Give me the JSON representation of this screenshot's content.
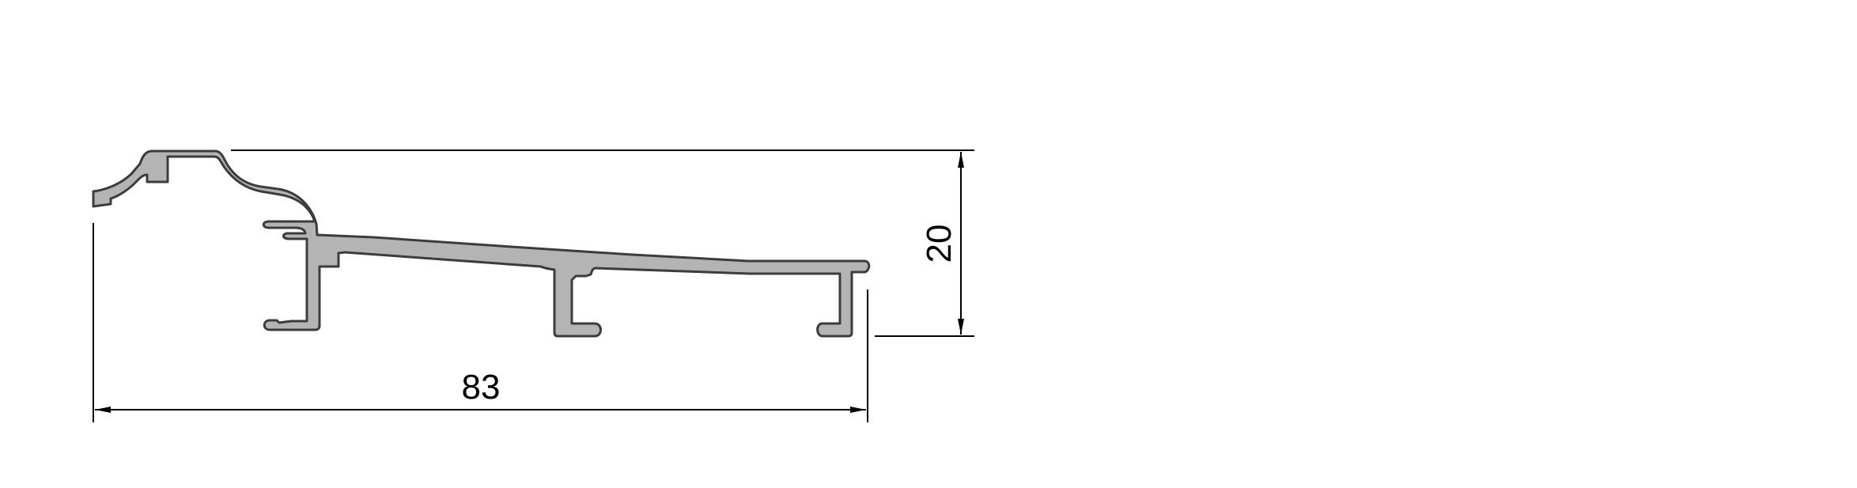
{
  "drawing": {
    "width_dimension": "83",
    "height_dimension": "20",
    "colors": {
      "profile_fill": "#b4b4b4",
      "profile_outline": "#3c3c3c",
      "dimension_lines": "#000000"
    }
  }
}
